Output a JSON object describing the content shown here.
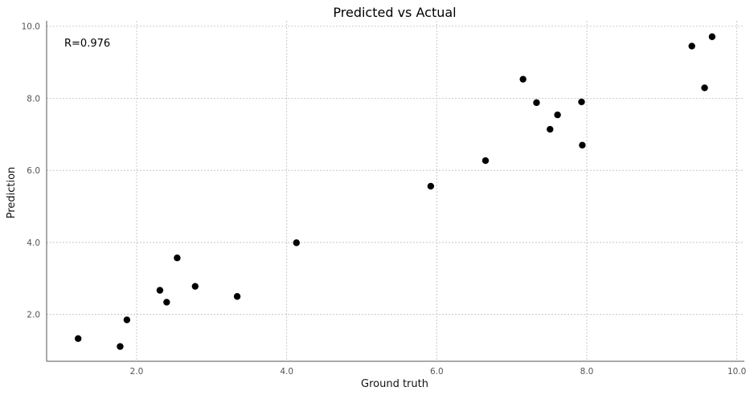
{
  "chart_data": {
    "type": "scatter",
    "title": "Predicted vs Actual",
    "xlabel": "Ground truth",
    "ylabel": "Prediction",
    "annotation": "R=0.976",
    "xlim": [
      0.8,
      10.1
    ],
    "ylim": [
      0.7,
      10.15
    ],
    "xticks": [
      "2.0",
      "4.0",
      "6.0",
      "8.0",
      "10.0"
    ],
    "yticks": [
      "2.0",
      "4.0",
      "6.0",
      "8.0",
      "10.0"
    ],
    "grid": true,
    "marker_color": "#000000",
    "points": [
      {
        "x": 1.22,
        "y": 1.33
      },
      {
        "x": 1.78,
        "y": 1.11
      },
      {
        "x": 1.87,
        "y": 1.85
      },
      {
        "x": 2.31,
        "y": 2.67
      },
      {
        "x": 2.4,
        "y": 2.34
      },
      {
        "x": 2.54,
        "y": 3.57
      },
      {
        "x": 2.78,
        "y": 2.78
      },
      {
        "x": 3.34,
        "y": 2.5
      },
      {
        "x": 4.13,
        "y": 3.99
      },
      {
        "x": 5.92,
        "y": 5.56
      },
      {
        "x": 6.65,
        "y": 6.27
      },
      {
        "x": 7.15,
        "y": 8.53
      },
      {
        "x": 7.33,
        "y": 7.88
      },
      {
        "x": 7.51,
        "y": 7.14
      },
      {
        "x": 7.61,
        "y": 7.54
      },
      {
        "x": 7.93,
        "y": 7.9
      },
      {
        "x": 7.94,
        "y": 6.7
      },
      {
        "x": 9.4,
        "y": 9.45
      },
      {
        "x": 9.57,
        "y": 8.29
      },
      {
        "x": 9.67,
        "y": 9.71
      }
    ]
  }
}
